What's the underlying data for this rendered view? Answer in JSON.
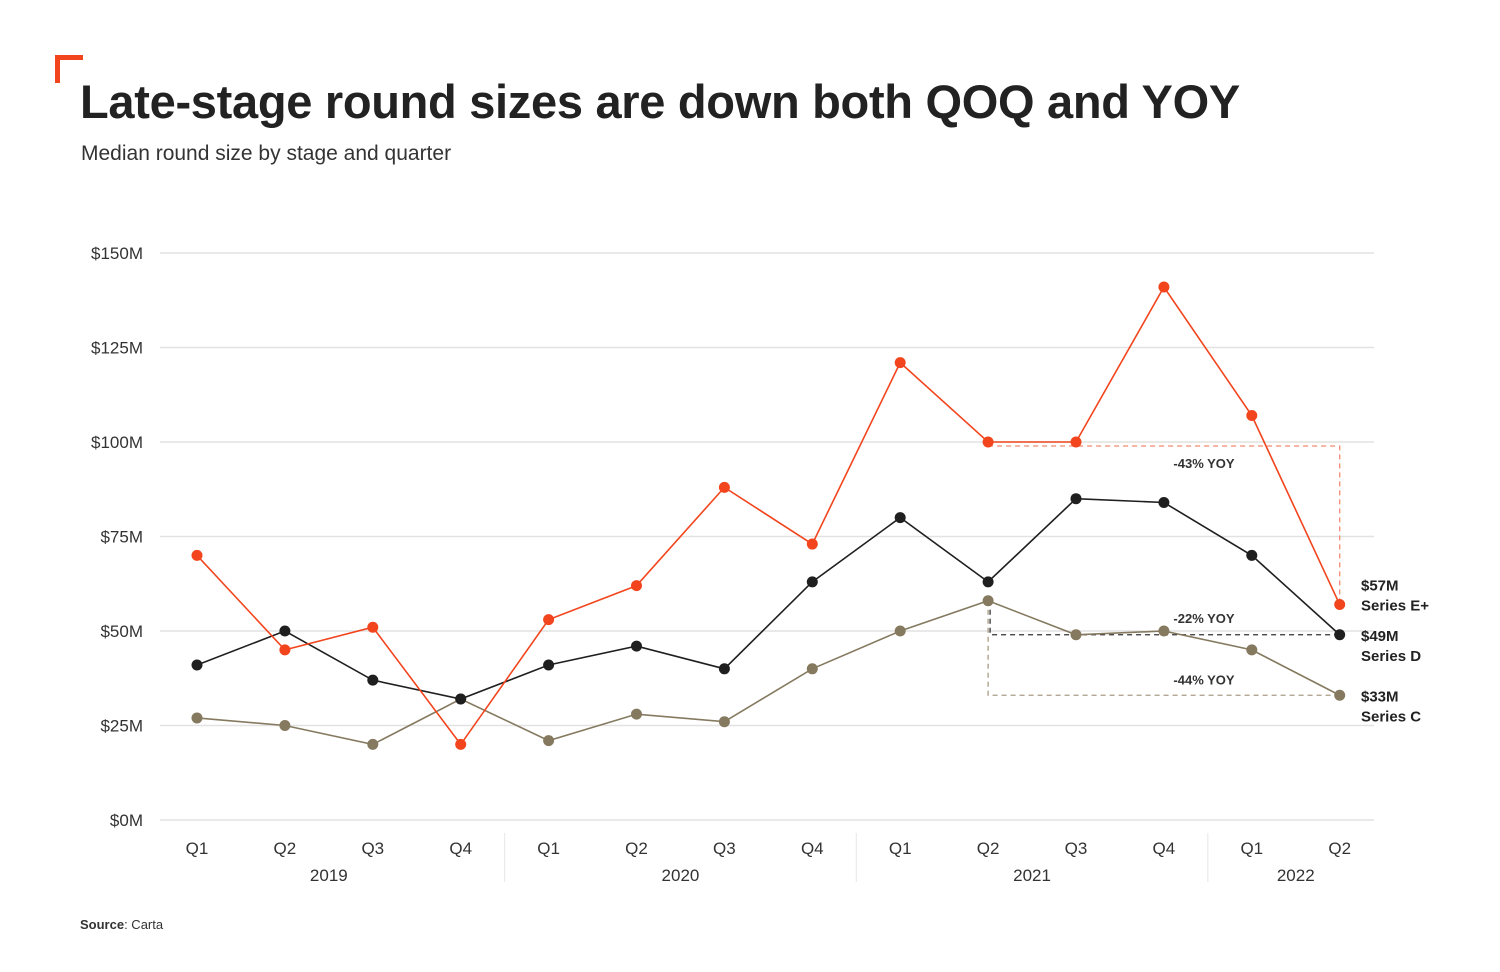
{
  "header": {
    "title": "Late-stage round sizes are down both QOQ and YOY",
    "subtitle": "Median round size by stage and quarter"
  },
  "footer": {
    "source_label": "Source",
    "source_value": ": Carta"
  },
  "colors": {
    "accent": "#f2451d",
    "series_e": "#f2451d",
    "series_d": "#1f1f1f",
    "series_c": "#857a60",
    "grid": "#e2e2e2"
  },
  "chart_data": {
    "type": "line",
    "title": "Late-stage round sizes are down both QOQ and YOY",
    "subtitle": "Median round size by stage and quarter",
    "xlabel": "",
    "ylabel": "",
    "ylim": [
      0,
      150
    ],
    "yticks": [
      0,
      25,
      50,
      75,
      100,
      125,
      150
    ],
    "ytick_labels": [
      "$0M",
      "$25M",
      "$50M",
      "$75M",
      "$100M",
      "$125M",
      "$150M"
    ],
    "grid": true,
    "x": [
      "Q1",
      "Q2",
      "Q3",
      "Q4",
      "Q1",
      "Q2",
      "Q3",
      "Q4",
      "Q1",
      "Q2",
      "Q3",
      "Q4",
      "Q1",
      "Q2"
    ],
    "year_groups": [
      {
        "label": "2019",
        "count": 4
      },
      {
        "label": "2020",
        "count": 4
      },
      {
        "label": "2021",
        "count": 4
      },
      {
        "label": "2022",
        "count": 2
      }
    ],
    "series": [
      {
        "name": "Series E+",
        "color": "#f2451d",
        "values": [
          70,
          45,
          51,
          20,
          53,
          62,
          88,
          73,
          121,
          100,
          100,
          141,
          107,
          57
        ],
        "end_value_label": "$57M",
        "end_name_label": "Series E+"
      },
      {
        "name": "Series D",
        "color": "#1f1f1f",
        "values": [
          41,
          50,
          37,
          32,
          41,
          46,
          40,
          63,
          80,
          63,
          85,
          84,
          70,
          49
        ],
        "end_value_label": "$49M",
        "end_name_label": "Series D"
      },
      {
        "name": "Series C",
        "color": "#857a60",
        "values": [
          27,
          25,
          20,
          32,
          21,
          28,
          26,
          40,
          50,
          58,
          49,
          50,
          45,
          33
        ],
        "end_value_label": "$33M",
        "end_name_label": "Series C"
      }
    ],
    "annotations": [
      {
        "text": "-43% YOY",
        "series": "Series E+",
        "from_index": 9,
        "to_index": 13
      },
      {
        "text": "-22% YOY",
        "series": "Series D",
        "from_index": 9,
        "to_index": 13
      },
      {
        "text": "-44% YOY",
        "series": "Series C",
        "from_index": 9,
        "to_index": 13
      }
    ],
    "legend": "inline-right"
  }
}
